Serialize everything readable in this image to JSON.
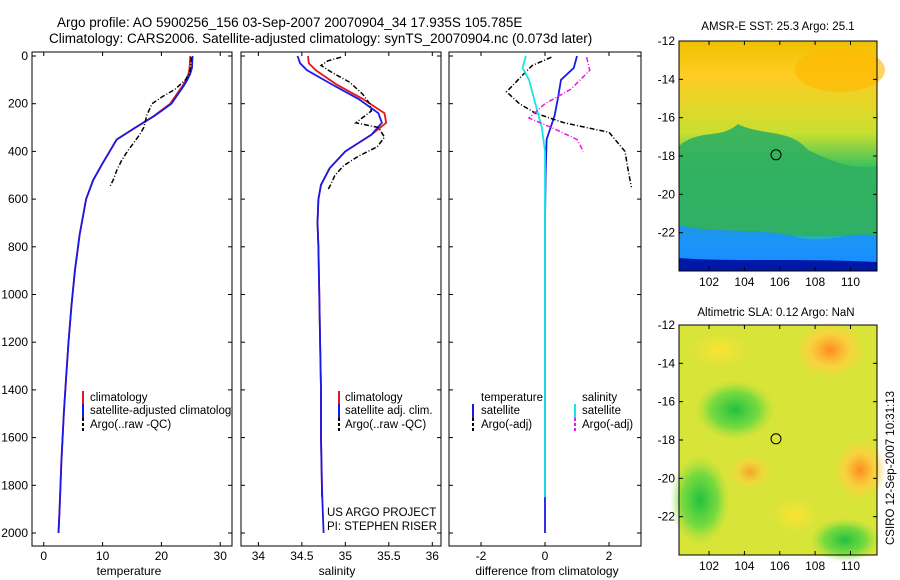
{
  "figure": {
    "title_line1": "Argo profile: AO 5900256_156 03-Sep-2007 20070904_34 17.935S 105.785E",
    "title_line2": "Climatology: CARS2006. Satellite-adjusted climatology: synTS_20070904.nc (0.073d later)",
    "credit_left": "US ARGO PROJECT",
    "credit_right": "PI: STEPHEN RISER",
    "stamp": "CSIRO 12-Sep-2007 10:31:13"
  },
  "colors": {
    "climatology": "#e8171a",
    "satellite": "#1a1ae6",
    "argo_temp": "#000000",
    "satellite_salinity": "#16e6e6",
    "argo_salinity": "#e61ae6"
  },
  "chart_data": [
    {
      "id": "temperature",
      "type": "line",
      "xlabel": "temperature",
      "xlim": [
        -2,
        32
      ],
      "ylim": [
        2050,
        0
      ],
      "xticks": [
        0,
        10,
        20,
        30
      ],
      "yticks": [
        0,
        200,
        400,
        600,
        800,
        1000,
        1200,
        1400,
        1600,
        1800,
        2000
      ],
      "legend": [
        "climatology",
        "satellite-adjusted climatology",
        "Argo(..raw -QC)"
      ],
      "series": [
        {
          "name": "climatology",
          "color": "#e8171a",
          "style": "solid",
          "x": [
            24.9,
            24.8,
            24.6,
            24.2,
            23.6,
            21.5,
            18.8,
            15.6,
            12.4,
            10.0,
            8.4,
            7.2,
            6.1,
            5.3,
            4.7,
            4.2,
            3.8,
            3.4,
            3.0,
            2.7,
            2.5
          ],
          "y": [
            0,
            50,
            75,
            100,
            125,
            200,
            250,
            300,
            350,
            450,
            520,
            600,
            750,
            900,
            1050,
            1200,
            1350,
            1500,
            1700,
            1900,
            2000
          ]
        },
        {
          "name": "satellite-adjusted climatology",
          "color": "#1a1ae6",
          "style": "solid",
          "x": [
            25.3,
            25.2,
            24.9,
            24.4,
            23.8,
            21.7,
            18.9,
            15.6,
            12.4,
            10.0,
            8.4,
            7.2,
            6.1,
            5.3,
            4.7,
            4.2,
            3.8,
            3.4,
            3.0,
            2.7,
            2.5
          ],
          "y": [
            0,
            50,
            75,
            100,
            125,
            200,
            250,
            300,
            350,
            450,
            520,
            600,
            750,
            900,
            1050,
            1200,
            1350,
            1500,
            1700,
            1900,
            2000
          ]
        },
        {
          "name": "Argo(..raw -QC)",
          "color": "#000000",
          "style": "dashdot",
          "x": [
            25.1,
            25.0,
            24.8,
            24.1,
            22.3,
            20.2,
            18.4,
            17.5,
            17.0,
            16.3,
            15.4,
            14.2,
            13.2,
            12.4,
            11.8,
            11.2
          ],
          "y": [
            5,
            40,
            70,
            100,
            140,
            170,
            200,
            250,
            300,
            330,
            360,
            400,
            440,
            480,
            520,
            550
          ]
        }
      ]
    },
    {
      "id": "salinity",
      "type": "line",
      "xlabel": "salinity",
      "xlim": [
        33.8,
        36.1
      ],
      "ylim": [
        2050,
        0
      ],
      "xticks": [
        34,
        34.5,
        35,
        35.5,
        36
      ],
      "xtick_labels": [
        "34",
        "34.5",
        "35",
        "35.5",
        "36"
      ],
      "yticks": [
        0,
        200,
        400,
        600,
        800,
        1000,
        1200,
        1400,
        1600,
        1800,
        2000
      ],
      "legend": [
        "climatology",
        "satellite adj. clim.",
        "Argo(..raw -QC)"
      ],
      "series": [
        {
          "name": "climatology",
          "color": "#e8171a",
          "style": "solid",
          "x": [
            34.57,
            34.58,
            34.66,
            34.9,
            35.2,
            35.45,
            35.47,
            35.3,
            35.0,
            34.82,
            34.72,
            34.69,
            34.68,
            34.69,
            34.7,
            34.71,
            34.72,
            34.72,
            34.73,
            34.73
          ],
          "y": [
            0,
            30,
            60,
            120,
            180,
            240,
            280,
            330,
            400,
            470,
            540,
            600,
            700,
            800,
            1000,
            1200,
            1400,
            1600,
            1800,
            1850
          ]
        },
        {
          "name": "satellite adj. clim.",
          "color": "#1a1ae6",
          "style": "solid",
          "x": [
            34.45,
            34.48,
            34.56,
            34.85,
            35.15,
            35.38,
            35.42,
            35.3,
            35.0,
            34.82,
            34.72,
            34.69,
            34.68,
            34.69,
            34.7,
            34.71,
            34.72,
            34.72,
            34.73,
            34.74,
            34.75
          ],
          "y": [
            0,
            30,
            60,
            120,
            180,
            240,
            280,
            330,
            400,
            470,
            540,
            600,
            700,
            800,
            1000,
            1200,
            1400,
            1600,
            1800,
            1900,
            2000
          ]
        },
        {
          "name": "Argo(..raw -QC)",
          "color": "#000000",
          "style": "dashdot",
          "x": [
            34.95,
            34.8,
            34.72,
            34.85,
            35.05,
            35.2,
            35.28,
            35.3,
            35.12,
            35.38,
            35.45,
            35.37,
            35.15,
            34.98,
            34.88,
            34.83,
            34.8
          ],
          "y": [
            5,
            20,
            40,
            70,
            110,
            160,
            200,
            230,
            280,
            300,
            340,
            380,
            420,
            460,
            500,
            540,
            560
          ]
        }
      ]
    },
    {
      "id": "difference",
      "type": "line",
      "xlabel": "difference from climatology",
      "xlim": [
        -3,
        3
      ],
      "ylim": [
        2050,
        0
      ],
      "xticks": [
        -2,
        0,
        2
      ],
      "yticks": [
        0,
        200,
        400,
        600,
        800,
        1000,
        1200,
        1400,
        1600,
        1800,
        2000
      ],
      "legend_headers": [
        "temperature",
        "salinity"
      ],
      "legend": [
        "satellite",
        "Argo(-adj)",
        "satellite",
        "Argo(-adj)"
      ],
      "series": [
        {
          "name": "temperature satellite",
          "color": "#1a1ae6",
          "style": "solid",
          "x": [
            1.0,
            0.9,
            0.5,
            0.4,
            0.3,
            0.05,
            0.02,
            0.0,
            0.0,
            0.0,
            0.0
          ],
          "y": [
            0,
            50,
            100,
            180,
            250,
            350,
            500,
            700,
            1000,
            1500,
            2000
          ]
        },
        {
          "name": "temperature Argo(-adj)",
          "color": "#000000",
          "style": "dashdot",
          "x": [
            0.2,
            -0.4,
            -0.7,
            -1.2,
            -0.8,
            -0.3,
            0.6,
            2.0,
            2.5,
            2.6,
            2.7
          ],
          "y": [
            5,
            40,
            80,
            150,
            200,
            240,
            280,
            320,
            400,
            480,
            550
          ]
        },
        {
          "name": "salinity satellite",
          "color": "#16e6e6",
          "style": "solid",
          "x": [
            -0.6,
            -0.7,
            -0.5,
            -0.3,
            -0.1,
            0.0,
            0.0,
            0.0,
            0.0,
            0.0
          ],
          "y": [
            0,
            50,
            100,
            200,
            300,
            400,
            600,
            1000,
            1500,
            1850
          ]
        },
        {
          "name": "salinity Argo(-adj)",
          "color": "#e61ae6",
          "style": "dashdot",
          "x": [
            1.3,
            1.4,
            0.8,
            0.0,
            -0.5,
            0.2,
            1.0,
            1.2
          ],
          "y": [
            5,
            60,
            140,
            200,
            260,
            300,
            350,
            400
          ]
        }
      ]
    },
    {
      "id": "sst_map",
      "type": "heatmap",
      "title": "AMSR-E SST: 25.3 Argo: 25.1",
      "xlim": [
        100.3,
        111.5
      ],
      "ylim": [
        -24,
        -12
      ],
      "xticks": [
        102,
        104,
        106,
        108,
        110
      ],
      "yticks": [
        -12,
        -14,
        -16,
        -18,
        -20,
        -22
      ],
      "marker": {
        "lon": 105.785,
        "lat": -17.935
      }
    },
    {
      "id": "sla_map",
      "type": "heatmap",
      "title": "Altimetric SLA: 0.12 Argo: NaN",
      "xlim": [
        100.3,
        111.5
      ],
      "ylim": [
        -24,
        -12
      ],
      "xticks": [
        102,
        104,
        106,
        108,
        110
      ],
      "yticks": [
        -12,
        -14,
        -16,
        -18,
        -20,
        -22
      ],
      "marker": {
        "lon": 105.785,
        "lat": -17.935
      }
    }
  ]
}
